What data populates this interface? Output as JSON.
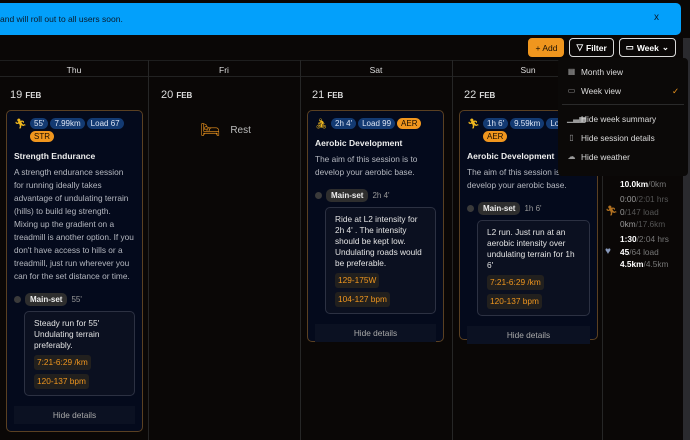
{
  "banner": {
    "text": "and will roll out to all users soon.",
    "close": "x"
  },
  "toolbar": {
    "add": "+ Add",
    "filter": "Filter",
    "view": "Week"
  },
  "days": [
    "Thu",
    "Fri",
    "Sat",
    "Sun"
  ],
  "dates": [
    {
      "d": "19",
      "m": "FEB"
    },
    {
      "d": "20",
      "m": "FEB"
    },
    {
      "d": "21",
      "m": "FEB"
    },
    {
      "d": "22",
      "m": "FEB"
    }
  ],
  "rest": "Rest",
  "cards": [
    {
      "tags": [
        "55'",
        "7.99km",
        "Load 67"
      ],
      "type": "STR",
      "title": "Strength Endurance",
      "desc": "A strength endurance session for running ideally takes advantage of undulating terrain (hills) to build leg strength. Mixing up the gradient on a treadmill is another option. If you don't have access to hills or a treadmill, just run wherever you can for the set distance or time.",
      "set": "Main-set",
      "set_dur": "55'",
      "step": "Steady run for 55' Undulating terrain preferably.",
      "targets": [
        "7:21-6:29 /km",
        "120-137 bpm"
      ],
      "hide": "Hide details"
    },
    {
      "tags": [
        "2h 4'",
        "Load 99"
      ],
      "type": "AER",
      "title": "Aerobic Development",
      "desc": "The aim of this session is to develop your aerobic base.",
      "set": "Main-set",
      "set_dur": "2h 4'",
      "step": "Ride at L2 intensity for 2h 4' . The intensity should be kept low. Undulating roads would be preferable.",
      "targets": [
        "129-175W",
        "104-127 bpm"
      ],
      "hide": "Hide details"
    },
    {
      "tags": [
        "1h 6'",
        "9.59km",
        "Load"
      ],
      "type": "AER",
      "title": "Aerobic Development",
      "desc": "The aim of this session is to develop your aerobic base.",
      "set": "Main-set",
      "set_dur": "1h 6'",
      "step": "L2 run. Just run at an aerobic intensity over undulating terrain for 1h 6'",
      "targets": [
        "7:21-6:29 /km",
        "120-137 bpm"
      ],
      "hide": "Hide details"
    }
  ],
  "menu": {
    "items": [
      {
        "label": "Month view",
        "icon": "grid-icon"
      },
      {
        "label": "Week view",
        "icon": "calendar-icon",
        "checked": "✓"
      },
      {
        "label": "Hide week summary",
        "icon": "bar-chart-icon"
      },
      {
        "label": "Hide session details",
        "icon": "document-icon"
      },
      {
        "label": "Hide weather",
        "icon": "cloud-icon"
      }
    ]
  },
  "summary": {
    "bike": {
      "dist": "10.0km",
      "dist_total": "/0km"
    },
    "run": {
      "time": "0:00",
      "time_total": "/2:01 hrs",
      "load": "0",
      "load_total": "/147 load",
      "dist": "0km",
      "dist_total": "/17.6km"
    },
    "other": {
      "time": "1:30",
      "time_total": "/2:04 hrs",
      "load": "45",
      "load_total": "/64 load",
      "dist": "4.5km",
      "dist_total": "/4.5km"
    }
  },
  "colors": {
    "banner": "#03a0fb",
    "accent": "#f0961e",
    "tag": "#133a72"
  }
}
